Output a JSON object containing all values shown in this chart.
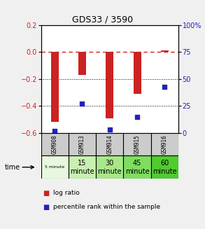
{
  "title": "GDS33 / 3590",
  "samples": [
    "GSM908",
    "GSM913",
    "GSM914",
    "GSM915",
    "GSM916"
  ],
  "time_labels_display": [
    "5 minute",
    "15\nminute",
    "30\nminute",
    "45\nminute",
    "60\nminute"
  ],
  "time_colors": [
    "#e8f8e0",
    "#c8f0b0",
    "#a8e888",
    "#80dd60",
    "#50cc30"
  ],
  "log_ratio": [
    -0.52,
    -0.17,
    -0.49,
    -0.31,
    0.01
  ],
  "percentile_rank": [
    2,
    27,
    3,
    15,
    43
  ],
  "ylim_left": [
    -0.6,
    0.2
  ],
  "ylim_right": [
    0,
    100
  ],
  "bar_color": "#cc2222",
  "dot_color": "#2222bb",
  "plot_bg": "#ffffff",
  "dashed_line_color": "#cc2222",
  "legend_bar_label": "log ratio",
  "legend_dot_label": "percentile rank within the sample",
  "time_label": "time",
  "ylabel_left_color": "#cc2222",
  "ylabel_right_color": "#2222bb",
  "sample_cell_color": "#cccccc",
  "bar_width": 0.28
}
